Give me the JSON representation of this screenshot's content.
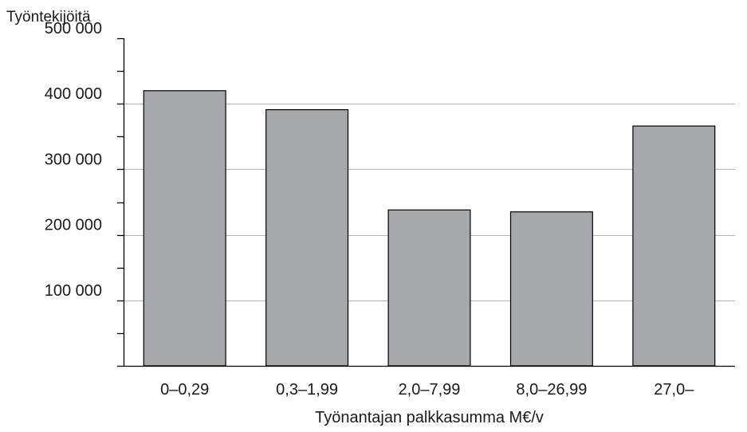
{
  "chart_data": {
    "type": "bar",
    "title": "",
    "ylabel": "Työntekijöitä",
    "xlabel": "Työnantajan palkkasumma M€/v",
    "categories": [
      "0–0,29",
      "0,3–1,99",
      "2,0–7,99",
      "8,0–26,99",
      "27,0–"
    ],
    "series": [
      {
        "values": [
          420000,
          391000,
          238000,
          235000,
          366000
        ]
      }
    ],
    "ylim": [
      0,
      500000
    ],
    "yticks": [
      100000,
      200000,
      300000,
      400000,
      500000
    ],
    "ytick_labels": [
      "100 000",
      "200 000",
      "300 000",
      "400 000",
      "500 000"
    ],
    "grid": true,
    "bar_color": "#a7a8ab",
    "bar_edge_color": "#000000",
    "grid_color": "#b3b3b3",
    "axis_color": "#000000"
  }
}
